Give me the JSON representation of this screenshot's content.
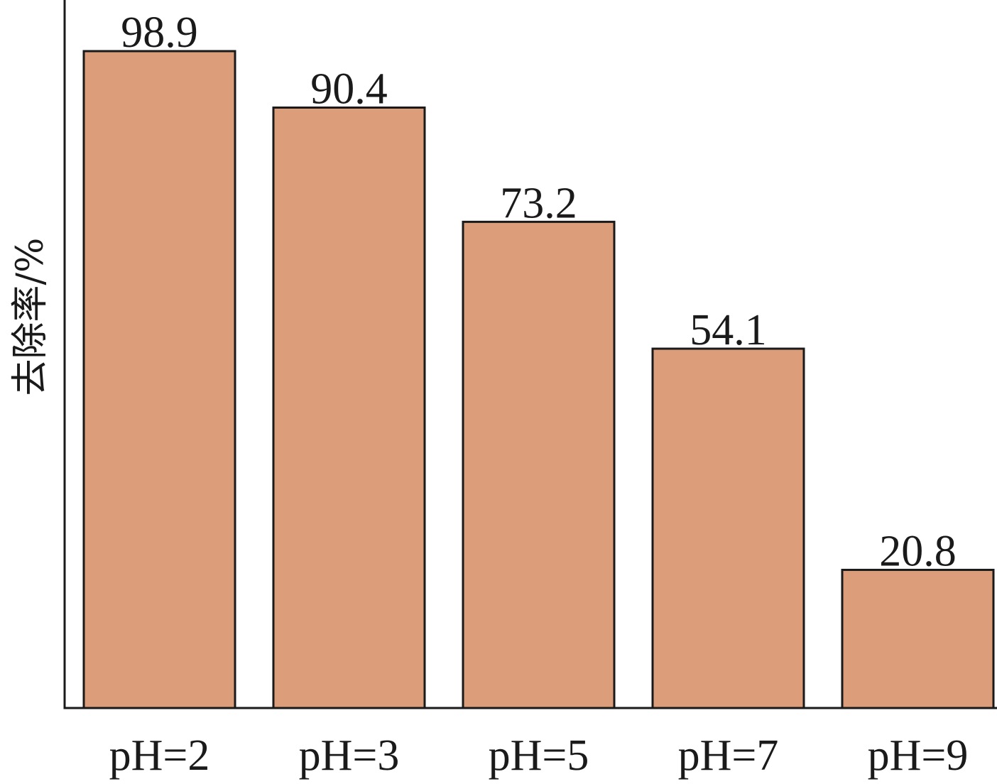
{
  "chart_data": {
    "type": "bar",
    "categories": [
      "pH=2",
      "pH=3",
      "pH=5",
      "pH=7",
      "pH=9"
    ],
    "values": [
      98.9,
      90.4,
      73.2,
      54.1,
      20.8
    ],
    "data_labels": [
      "98.9",
      "90.4",
      "73.2",
      "54.1",
      "20.8"
    ],
    "title": "",
    "xlabel": "",
    "ylabel": "去除率/%",
    "ylim": [
      0,
      100
    ],
    "grid": false,
    "legend": "none",
    "colors": {
      "bar_fill": "#dc9e7a",
      "bar_stroke": "#1a1a1a",
      "axis": "#1a1a1a"
    }
  }
}
